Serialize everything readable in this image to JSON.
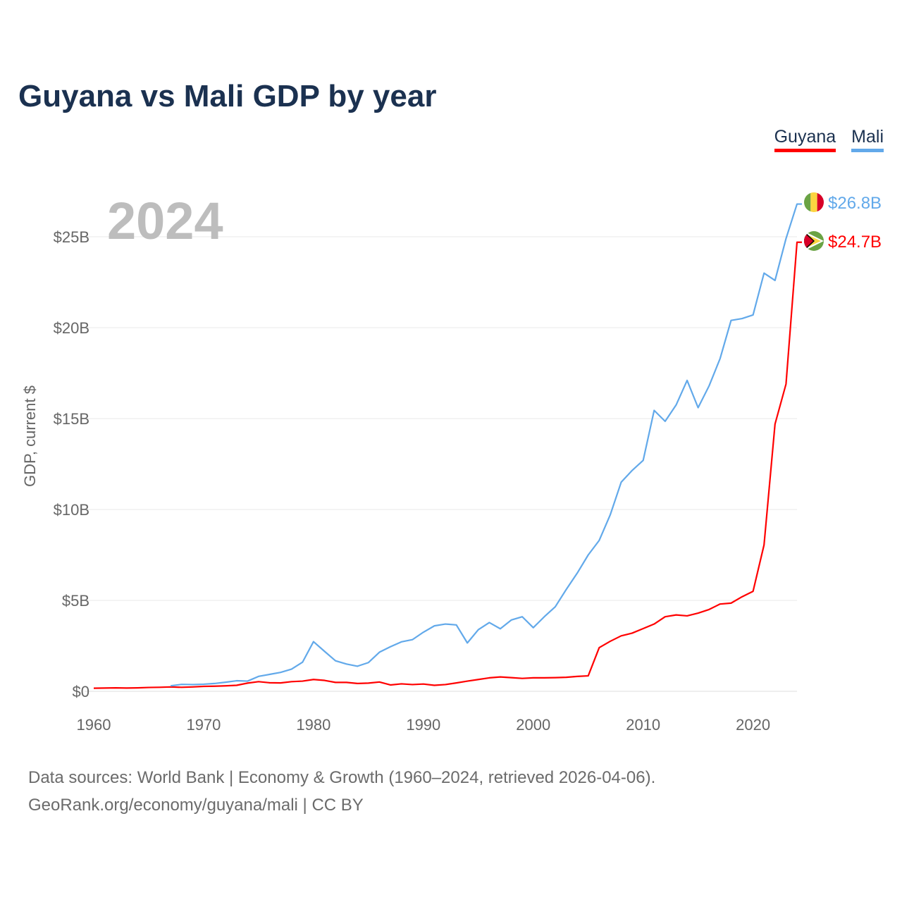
{
  "title": "Guyana vs Mali GDP by year",
  "legend": [
    {
      "label": "Guyana",
      "color": "#ff0000"
    },
    {
      "label": "Mali",
      "color": "#62a9ea"
    }
  ],
  "current_year_label": "2024",
  "source_line1": "Data sources: World Bank | Economy & Growth (1960–2024, retrieved 2026-04-06).",
  "source_line2": "GeoRank.org/economy/guyana/mali | CC BY",
  "chart_data": {
    "type": "line",
    "title": "Guyana vs Mali GDP by year",
    "xlabel": "",
    "ylabel": "GDP, current $",
    "xlim": [
      1960,
      2024
    ],
    "ylim": [
      0,
      25
    ],
    "units": "billions USD",
    "grid": true,
    "legend_position": "top-right",
    "x_ticks": [
      "1960",
      "1970",
      "1980",
      "1990",
      "2000",
      "2010",
      "2020"
    ],
    "y_ticks": [
      {
        "v": 0,
        "label": "$0"
      },
      {
        "v": 5,
        "label": "$5B"
      },
      {
        "v": 10,
        "label": "$10B"
      },
      {
        "v": 15,
        "label": "$15B"
      },
      {
        "v": 20,
        "label": "$20B"
      },
      {
        "v": 25,
        "label": "$25B"
      }
    ],
    "series": [
      {
        "name": "Guyana",
        "color": "#ff0000",
        "end_label": "$24.7B",
        "start_year": 1960,
        "values": [
          0.17,
          0.18,
          0.19,
          0.18,
          0.19,
          0.21,
          0.22,
          0.24,
          0.22,
          0.24,
          0.27,
          0.28,
          0.3,
          0.33,
          0.45,
          0.53,
          0.47,
          0.46,
          0.53,
          0.56,
          0.65,
          0.6,
          0.49,
          0.49,
          0.43,
          0.45,
          0.51,
          0.35,
          0.41,
          0.37,
          0.4,
          0.33,
          0.37,
          0.46,
          0.56,
          0.65,
          0.74,
          0.79,
          0.75,
          0.71,
          0.74,
          0.74,
          0.75,
          0.77,
          0.82,
          0.85,
          2.4,
          2.75,
          3.05,
          3.2,
          3.45,
          3.7,
          4.1,
          4.2,
          4.15,
          4.3,
          4.5,
          4.8,
          4.85,
          5.2,
          5.5,
          8.05,
          14.7,
          16.9,
          24.7
        ]
      },
      {
        "name": "Mali",
        "color": "#62a9ea",
        "end_label": "$26.8B",
        "start_year": 1967,
        "values": [
          0.3,
          0.38,
          0.37,
          0.39,
          0.43,
          0.5,
          0.58,
          0.56,
          0.82,
          0.93,
          1.04,
          1.22,
          1.6,
          2.73,
          2.2,
          1.68,
          1.5,
          1.38,
          1.58,
          2.15,
          2.45,
          2.72,
          2.84,
          3.25,
          3.6,
          3.7,
          3.65,
          2.66,
          3.39,
          3.78,
          3.44,
          3.92,
          4.1,
          3.5,
          4.1,
          4.65,
          5.6,
          6.5,
          7.5,
          8.3,
          9.7,
          11.5,
          12.15,
          12.7,
          15.45,
          14.85,
          15.75,
          17.1,
          15.6,
          16.8,
          18.3,
          20.4,
          20.5,
          20.7,
          23.0,
          22.6,
          24.9,
          26.8
        ]
      }
    ]
  }
}
